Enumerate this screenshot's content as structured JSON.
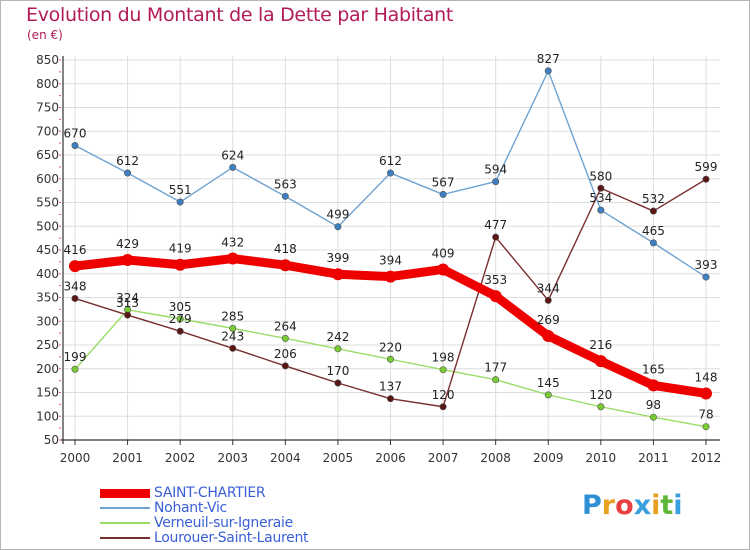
{
  "title": "Evolution du Montant de la Dette par Habitant",
  "unit_label": "(en €)",
  "logo_text": "Proxiti",
  "chart_data": {
    "type": "line",
    "title": "Evolution du Montant de la Dette par Habitant",
    "ylabel": "(en €)",
    "xlabel": "",
    "x": [
      "2000",
      "2001",
      "2002",
      "2003",
      "2004",
      "2005",
      "2006",
      "2007",
      "2008",
      "2009",
      "2010",
      "2011",
      "2012"
    ],
    "ylim": [
      50,
      850
    ],
    "yticks": [
      "50",
      "100",
      "150",
      "200",
      "250",
      "300",
      "350",
      "400",
      "450",
      "500",
      "550",
      "600",
      "650",
      "700",
      "750",
      "800",
      "850"
    ],
    "grid": true,
    "legend_position": "bottom-left",
    "series": [
      {
        "name": "SAINT-CHARTIER",
        "color": "#ee0000",
        "marker_color": "#ee0000",
        "bold": true,
        "values": [
          416,
          429,
          419,
          432,
          418,
          399,
          394,
          409,
          353,
          269,
          216,
          165,
          148
        ],
        "labels": [
          "416",
          "429",
          "419",
          "432",
          "418",
          "399",
          "394",
          "409",
          "353",
          "269",
          "216",
          "165",
          "148"
        ]
      },
      {
        "name": "Nohant-Vic",
        "color": "#6fa3d0",
        "marker_color": "#3d7fc0",
        "bold": false,
        "values": [
          670,
          612,
          551,
          624,
          563,
          499,
          612,
          567,
          594,
          827,
          534,
          465,
          393
        ],
        "labels": [
          "670",
          "612",
          "551",
          "624",
          "563",
          "499",
          "612",
          "567",
          "594",
          "827",
          "534",
          "465",
          "393"
        ]
      },
      {
        "name": "Verneuil-sur-Igneraie",
        "color": "#99dd66",
        "marker_color": "#77cc33",
        "bold": false,
        "values": [
          199,
          324,
          305,
          285,
          264,
          242,
          220,
          198,
          177,
          145,
          120,
          98,
          78
        ],
        "labels": [
          "199",
          "324",
          "305",
          "285",
          "264",
          "242",
          "220",
          "198",
          "177",
          "145",
          "120",
          "98",
          "78"
        ]
      },
      {
        "name": "Lourouer-Saint-Laurent",
        "color": "#7a2e2e",
        "marker_color": "#5a1515",
        "bold": false,
        "values": [
          348,
          313,
          279,
          243,
          206,
          170,
          137,
          120,
          477,
          344,
          580,
          532,
          599
        ],
        "labels": [
          "348",
          "313",
          "279",
          "243",
          "206",
          "170",
          "137",
          "120",
          "477",
          "344",
          "580",
          "532",
          "599"
        ]
      }
    ]
  }
}
